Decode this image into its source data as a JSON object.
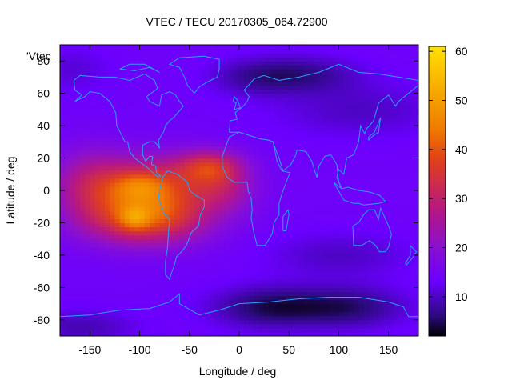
{
  "chart_data": {
    "type": "heatmap",
    "title": "VTEC / TECU 20170305_064.72900",
    "plot_key_label": "'Vtec_",
    "xlabel": "Longitude / deg",
    "ylabel": "Latitude / deg",
    "xlim": [
      -180,
      180
    ],
    "ylim": [
      -90,
      90
    ],
    "xticks": [
      -150,
      -100,
      -50,
      0,
      50,
      100,
      150
    ],
    "yticks": [
      -80,
      -60,
      -40,
      -20,
      0,
      20,
      40,
      60,
      80
    ],
    "colorbar": {
      "range": [
        2,
        61
      ],
      "ticks": [
        10,
        20,
        30,
        40,
        50,
        60
      ],
      "palette": [
        "#000000",
        "#2a0a7a",
        "#6a00ff",
        "#8a10d0",
        "#b81880",
        "#e0401a",
        "#f07800",
        "#ffe000"
      ],
      "palette_stops": [
        2,
        6,
        13,
        20,
        28,
        38,
        44,
        61
      ]
    },
    "tec_background": 14,
    "tec_features": [
      {
        "lon": -90,
        "lat": 2,
        "sigma_lon": 48,
        "sigma_lat": 13,
        "value": 22
      },
      {
        "lon": -95,
        "lat": -18,
        "sigma_lon": 42,
        "sigma_lat": 11,
        "value": 22
      },
      {
        "lon": -100,
        "lat": 3,
        "sigma_lon": 18,
        "sigma_lat": 6,
        "value": 8
      },
      {
        "lon": -105,
        "lat": -17,
        "sigma_lon": 10,
        "sigma_lat": 5,
        "value": 9
      },
      {
        "lon": -30,
        "lat": 15,
        "sigma_lon": 22,
        "sigma_lat": 7,
        "value": 16
      },
      {
        "lon": -15,
        "lat": 2,
        "sigma_lon": 20,
        "sigma_lat": 10,
        "value": 8
      },
      {
        "lon": -150,
        "lat": 5,
        "sigma_lon": 25,
        "sigma_lat": 15,
        "value": 8
      },
      {
        "lon": 60,
        "lat": 72,
        "sigma_lon": 40,
        "sigma_lat": 8,
        "value": -7
      },
      {
        "lon": 10,
        "lat": 70,
        "sigma_lon": 30,
        "sigma_lat": 8,
        "value": -4
      },
      {
        "lon": 120,
        "lat": 50,
        "sigma_lon": 60,
        "sigma_lat": 12,
        "value": -4
      },
      {
        "lon": 30,
        "lat": -72,
        "sigma_lon": 40,
        "sigma_lat": 9,
        "value": -9
      },
      {
        "lon": 110,
        "lat": -72,
        "sigma_lon": 40,
        "sigma_lat": 9,
        "value": -8
      },
      {
        "lon": -160,
        "lat": -84,
        "sigma_lon": 40,
        "sigma_lat": 7,
        "value": -5
      },
      {
        "lon": 100,
        "lat": -40,
        "sigma_lon": 50,
        "sigma_lat": 10,
        "value": -4
      },
      {
        "lon": -170,
        "lat": 75,
        "sigma_lon": 30,
        "sigma_lat": 10,
        "value": -3
      }
    ],
    "coastlines": [
      {
        "name": "north-america",
        "points": [
          [
            -166,
            68
          ],
          [
            -160,
            71
          ],
          [
            -140,
            70
          ],
          [
            -125,
            70
          ],
          [
            -110,
            68
          ],
          [
            -95,
            72
          ],
          [
            -85,
            68
          ],
          [
            -82,
            63
          ],
          [
            -93,
            58
          ],
          [
            -90,
            55
          ],
          [
            -80,
            52
          ],
          [
            -78,
            59
          ],
          [
            -70,
            61
          ],
          [
            -64,
            59
          ],
          [
            -60,
            55
          ],
          [
            -56,
            52
          ],
          [
            -66,
            45
          ],
          [
            -70,
            43
          ],
          [
            -74,
            40
          ],
          [
            -76,
            36
          ],
          [
            -81,
            31
          ],
          [
            -80,
            26
          ],
          [
            -82,
            28
          ],
          [
            -85,
            30
          ],
          [
            -90,
            30
          ],
          [
            -97,
            28
          ],
          [
            -97,
            22
          ],
          [
            -94,
            18
          ],
          [
            -90,
            21
          ],
          [
            -87,
            21
          ],
          [
            -88,
            16
          ],
          [
            -84,
            15
          ],
          [
            -83,
            11
          ],
          [
            -79,
            9
          ],
          [
            -81,
            8
          ],
          [
            -85,
            10
          ],
          [
            -92,
            14
          ],
          [
            -105,
            20
          ],
          [
            -110,
            24
          ],
          [
            -112,
            30
          ],
          [
            -115,
            30
          ],
          [
            -117,
            33
          ],
          [
            -123,
            40
          ],
          [
            -124,
            48
          ],
          [
            -130,
            55
          ],
          [
            -140,
            60
          ],
          [
            -150,
            61
          ],
          [
            -155,
            58
          ],
          [
            -165,
            55
          ],
          [
            -158,
            59
          ],
          [
            -165,
            62
          ],
          [
            -166,
            68
          ]
        ]
      },
      {
        "name": "greenland",
        "points": [
          [
            -45,
            60
          ],
          [
            -52,
            65
          ],
          [
            -55,
            70
          ],
          [
            -60,
            76
          ],
          [
            -70,
            78
          ],
          [
            -60,
            82
          ],
          [
            -35,
            83
          ],
          [
            -20,
            81
          ],
          [
            -20,
            75
          ],
          [
            -22,
            70
          ],
          [
            -32,
            67
          ],
          [
            -40,
            64
          ],
          [
            -45,
            60
          ]
        ]
      },
      {
        "name": "south-america",
        "points": [
          [
            -77,
            8
          ],
          [
            -72,
            12
          ],
          [
            -62,
            10
          ],
          [
            -52,
            5
          ],
          [
            -50,
            0
          ],
          [
            -44,
            -3
          ],
          [
            -35,
            -6
          ],
          [
            -35,
            -10
          ],
          [
            -39,
            -15
          ],
          [
            -41,
            -22
          ],
          [
            -48,
            -26
          ],
          [
            -53,
            -34
          ],
          [
            -58,
            -38
          ],
          [
            -63,
            -41
          ],
          [
            -65,
            -46
          ],
          [
            -68,
            -51
          ],
          [
            -70,
            -55
          ],
          [
            -74,
            -52
          ],
          [
            -74,
            -44
          ],
          [
            -72,
            -35
          ],
          [
            -71,
            -26
          ],
          [
            -70,
            -18
          ],
          [
            -76,
            -14
          ],
          [
            -81,
            -5
          ],
          [
            -80,
            0
          ],
          [
            -77,
            8
          ]
        ]
      },
      {
        "name": "eurasia",
        "points": [
          [
            -10,
            36
          ],
          [
            -9,
            43
          ],
          [
            -2,
            44
          ],
          [
            -4,
            48
          ],
          [
            4,
            52
          ],
          [
            8,
            55
          ],
          [
            10,
            58
          ],
          [
            5,
            62
          ],
          [
            15,
            69
          ],
          [
            25,
            71
          ],
          [
            40,
            68
          ],
          [
            60,
            70
          ],
          [
            80,
            73
          ],
          [
            100,
            78
          ],
          [
            120,
            73
          ],
          [
            140,
            72
          ],
          [
            160,
            70
          ],
          [
            180,
            68
          ],
          [
            180,
            65
          ],
          [
            170,
            60
          ],
          [
            160,
            55
          ],
          [
            157,
            52
          ],
          [
            150,
            59
          ],
          [
            140,
            54
          ],
          [
            135,
            43
          ],
          [
            128,
            38
          ],
          [
            126,
            35
          ],
          [
            122,
            40
          ],
          [
            120,
            30
          ],
          [
            115,
            22
          ],
          [
            108,
            20
          ],
          [
            105,
            10
          ],
          [
            100,
            13
          ],
          [
            98,
            8
          ],
          [
            103,
            1
          ],
          [
            100,
            5
          ],
          [
            98,
            16
          ],
          [
            92,
            22
          ],
          [
            86,
            21
          ],
          [
            80,
            15
          ],
          [
            78,
            8
          ],
          [
            73,
            18
          ],
          [
            67,
            24
          ],
          [
            58,
            25
          ],
          [
            57,
            22
          ],
          [
            52,
            16
          ],
          [
            44,
            12
          ],
          [
            40,
            20
          ],
          [
            35,
            28
          ],
          [
            34,
            30
          ],
          [
            30,
            31
          ],
          [
            20,
            32
          ],
          [
            10,
            34
          ],
          [
            0,
            36
          ],
          [
            -10,
            36
          ]
        ]
      },
      {
        "name": "africa",
        "points": [
          [
            -17,
            21
          ],
          [
            -17,
            15
          ],
          [
            -12,
            8
          ],
          [
            -5,
            5
          ],
          [
            8,
            5
          ],
          [
            9,
            0
          ],
          [
            12,
            -5
          ],
          [
            13,
            -12
          ],
          [
            12,
            -17
          ],
          [
            15,
            -27
          ],
          [
            18,
            -34
          ],
          [
            26,
            -34
          ],
          [
            33,
            -27
          ],
          [
            35,
            -20
          ],
          [
            40,
            -15
          ],
          [
            40,
            -8
          ],
          [
            44,
            0
          ],
          [
            51,
            11
          ],
          [
            43,
            12
          ],
          [
            38,
            18
          ],
          [
            34,
            30
          ],
          [
            30,
            31
          ],
          [
            20,
            32
          ],
          [
            10,
            34
          ],
          [
            0,
            36
          ],
          [
            -10,
            33
          ],
          [
            -17,
            21
          ]
        ]
      },
      {
        "name": "australia",
        "points": [
          [
            114,
            -22
          ],
          [
            115,
            -34
          ],
          [
            123,
            -34
          ],
          [
            131,
            -31
          ],
          [
            137,
            -34
          ],
          [
            141,
            -38
          ],
          [
            147,
            -38
          ],
          [
            150,
            -35
          ],
          [
            153,
            -27
          ],
          [
            150,
            -22
          ],
          [
            145,
            -15
          ],
          [
            142,
            -11
          ],
          [
            140,
            -18
          ],
          [
            136,
            -12
          ],
          [
            130,
            -12
          ],
          [
            125,
            -15
          ],
          [
            120,
            -20
          ],
          [
            114,
            -22
          ]
        ]
      },
      {
        "name": "antarctica",
        "points": [
          [
            -180,
            -78
          ],
          [
            -150,
            -77
          ],
          [
            -120,
            -74
          ],
          [
            -90,
            -73
          ],
          [
            -70,
            -69
          ],
          [
            -60,
            -64
          ],
          [
            -60,
            -70
          ],
          [
            -40,
            -77
          ],
          [
            -20,
            -74
          ],
          [
            0,
            -70
          ],
          [
            30,
            -69
          ],
          [
            60,
            -67
          ],
          [
            90,
            -66
          ],
          [
            120,
            -66
          ],
          [
            150,
            -69
          ],
          [
            165,
            -72
          ],
          [
            170,
            -78
          ],
          [
            180,
            -78
          ]
        ]
      },
      {
        "name": "britain",
        "points": [
          [
            -5,
            50
          ],
          [
            1,
            51
          ],
          [
            0,
            53
          ],
          [
            -2,
            56
          ],
          [
            -5,
            58
          ],
          [
            -6,
            55
          ],
          [
            -3,
            54
          ],
          [
            -5,
            50
          ]
        ]
      },
      {
        "name": "japan",
        "points": [
          [
            130,
            31
          ],
          [
            135,
            34
          ],
          [
            140,
            36
          ],
          [
            141,
            41
          ],
          [
            142,
            45
          ],
          [
            140,
            42
          ],
          [
            136,
            36
          ],
          [
            130,
            33
          ],
          [
            130,
            31
          ]
        ]
      },
      {
        "name": "madagascar",
        "points": [
          [
            44,
            -25
          ],
          [
            47,
            -25
          ],
          [
            50,
            -15
          ],
          [
            49,
            -12
          ],
          [
            44,
            -16
          ],
          [
            44,
            -25
          ]
        ]
      },
      {
        "name": "new-zealand",
        "points": [
          [
            172,
            -34
          ],
          [
            178,
            -38
          ],
          [
            175,
            -41
          ],
          [
            168,
            -46
          ],
          [
            167,
            -45
          ],
          [
            172,
            -40
          ],
          [
            172,
            -34
          ]
        ]
      },
      {
        "name": "indonesia",
        "points": [
          [
            95,
            5
          ],
          [
            105,
            -6
          ],
          [
            115,
            -8
          ],
          [
            120,
            -8
          ],
          [
            125,
            -9
          ],
          [
            140,
            -8
          ],
          [
            147,
            -7
          ],
          [
            141,
            -3
          ],
          [
            131,
            -1
          ],
          [
            120,
            0
          ],
          [
            109,
            2
          ],
          [
            103,
            1
          ],
          [
            95,
            5
          ]
        ]
      },
      {
        "name": "arctic-islands",
        "points": [
          [
            -120,
            75
          ],
          [
            -105,
            74
          ],
          [
            -90,
            76
          ],
          [
            -80,
            73
          ],
          [
            -95,
            78
          ],
          [
            -110,
            78
          ],
          [
            -120,
            75
          ]
        ]
      }
    ]
  }
}
